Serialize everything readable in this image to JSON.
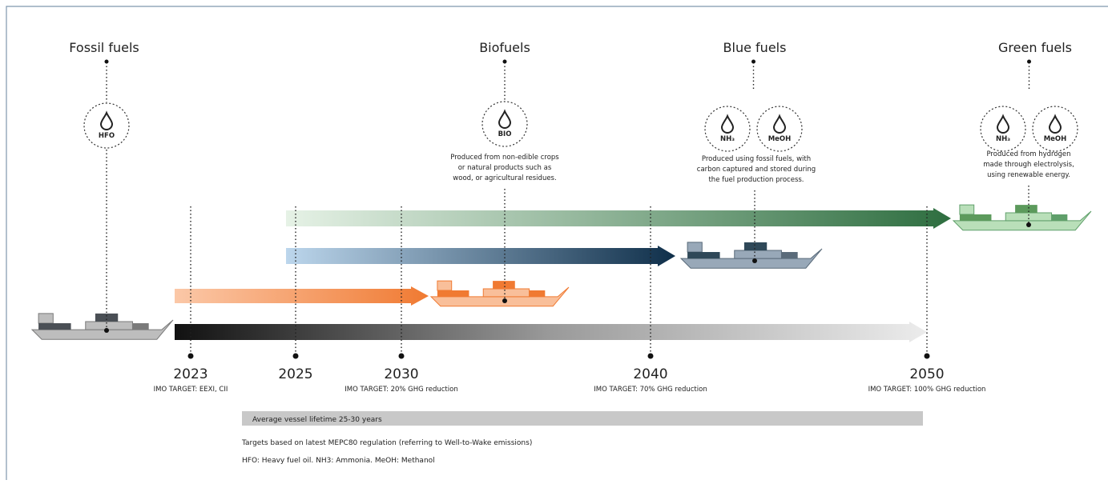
{
  "fuels": [
    {
      "title": "Fossil fuels",
      "icons": [
        "HFO"
      ]
    },
    {
      "title": "Biofuels",
      "icons": [
        "BIO"
      ],
      "description": [
        "Produced from non-edible crops",
        "or natural products such as",
        "wood, or agricultural residues."
      ]
    },
    {
      "title": "Blue fuels",
      "icons": [
        "NH₃",
        "MeOH"
      ],
      "description": [
        "Produced using fossil fuels, with",
        "carbon captured and stored during",
        "the fuel production process."
      ]
    },
    {
      "title": "Green fuels",
      "icons": [
        "NH₃",
        "MeOH"
      ],
      "description": [
        "Produced from hydrogen",
        "made through electrolysis,",
        "using renewable energy."
      ]
    }
  ],
  "timeline": [
    {
      "year": "2023",
      "target": "IMO TARGET: EEXI, CII"
    },
    {
      "year": "2025"
    },
    {
      "year": "2030",
      "target": "IMO TARGET: 20% GHG reduction"
    },
    {
      "year": "2040",
      "target": "IMO TARGET: 70% GHG reduction"
    },
    {
      "year": "2050",
      "target": "IMO TARGET: 100% GHG reduction"
    }
  ],
  "lifetime": "Average vessel lifetime 25-30 years",
  "footnotes": [
    "Targets based on latest MEPC80 regulation (referring to Well-to-Wake emissions)",
    "HFO: Heavy fuel oil. NH3: Ammonia. MeOH: Methanol"
  ]
}
